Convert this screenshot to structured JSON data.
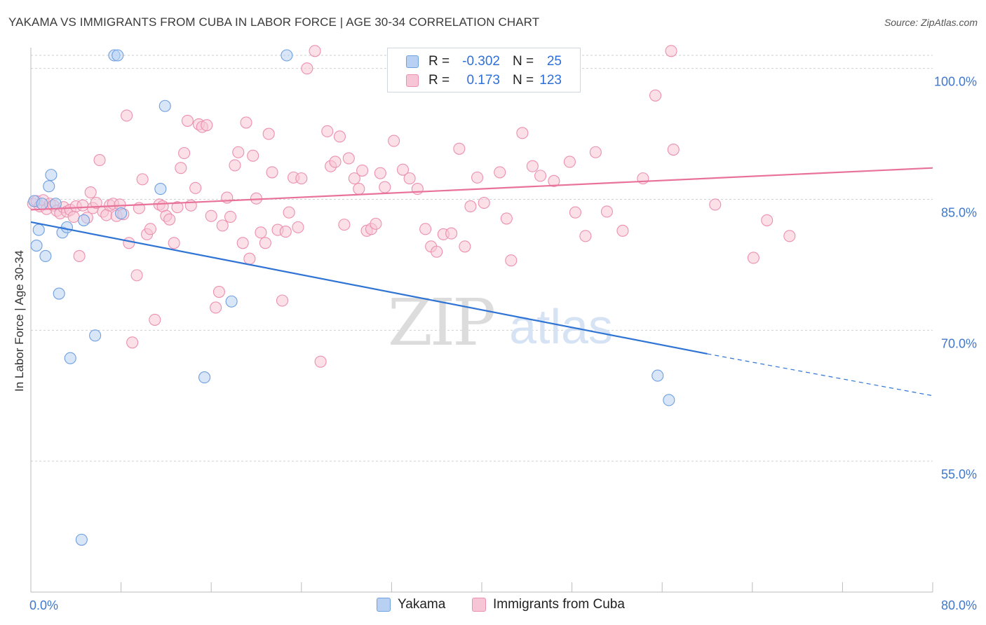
{
  "title": "YAKAMA VS IMMIGRANTS FROM CUBA IN LABOR FORCE | AGE 30-34 CORRELATION CHART",
  "source": "Source: ZipAtlas.com",
  "watermark": {
    "zip": "ZIP",
    "atlas": "atlas"
  },
  "legend": {
    "rows": [
      {
        "r_label": "R =",
        "r_value": "-0.302",
        "n_label": "N =",
        "n_value": "25"
      },
      {
        "r_label": "R =",
        "r_value": "0.173",
        "n_label": "N =",
        "n_value": "123"
      }
    ],
    "bottom": [
      "Yakama",
      "Immigrants from Cuba"
    ]
  },
  "colors": {
    "yakama_fill": "#b8d1f3",
    "yakama_stroke": "#6e9fe0",
    "yakama_line": "#2f74d4",
    "cuba_fill": "#f7c6d6",
    "cuba_stroke": "#ec8fb0",
    "cuba_line": "#e8729a",
    "tick_label": "#3f78cc",
    "grid": "#cfcfcf",
    "axis_text": "#444444"
  },
  "chart_data": {
    "type": "scatter",
    "title": "YAKAMA VS IMMIGRANTS FROM CUBA IN LABOR FORCE | AGE 30-34 CORRELATION CHART",
    "xlabel": "",
    "ylabel": "In Labor Force | Age 30-34",
    "xlim": [
      0,
      80
    ],
    "ylim": [
      40,
      101.5
    ],
    "x_tick_labels": [
      {
        "value": 0,
        "label": "0.0%"
      },
      {
        "value": 80,
        "label": "80.0%"
      }
    ],
    "y_tick_labels": [
      {
        "value": 100,
        "label": "100.0%"
      },
      {
        "value": 85,
        "label": "85.0%"
      },
      {
        "value": 70,
        "label": "70.0%"
      },
      {
        "value": 55,
        "label": "55.0%"
      }
    ],
    "series": [
      {
        "name": "Yakama",
        "r": -0.302,
        "n": 25,
        "trend": {
          "x0": 0,
          "y0": 82.4,
          "x1": 60,
          "y1": 67.3,
          "dash_to_x": 80,
          "dash_to_y": 62.5
        },
        "points": [
          [
            0.3,
            84.8
          ],
          [
            0.5,
            79.7
          ],
          [
            0.7,
            81.5
          ],
          [
            1.0,
            84.5
          ],
          [
            1.3,
            78.5
          ],
          [
            1.6,
            86.5
          ],
          [
            1.8,
            87.8
          ],
          [
            2.2,
            84.5
          ],
          [
            2.5,
            74.2
          ],
          [
            2.8,
            81.2
          ],
          [
            3.2,
            81.8
          ],
          [
            3.5,
            66.8
          ],
          [
            4.5,
            46.0
          ],
          [
            4.7,
            82.6
          ],
          [
            5.7,
            69.4
          ],
          [
            7.4,
            101.5
          ],
          [
            7.7,
            101.5
          ],
          [
            8.0,
            83.4
          ],
          [
            11.5,
            86.2
          ],
          [
            11.9,
            95.7
          ],
          [
            15.4,
            64.6
          ],
          [
            17.8,
            73.3
          ],
          [
            22.7,
            101.5
          ],
          [
            55.6,
            64.8
          ],
          [
            56.6,
            62.0
          ]
        ]
      },
      {
        "name": "Immigrants from Cuba",
        "r": 0.173,
        "n": 123,
        "trend": {
          "x0": 0,
          "y0": 83.8,
          "x1": 80,
          "y1": 88.6
        },
        "points": [
          [
            0.2,
            84.5
          ],
          [
            0.5,
            84.8
          ],
          [
            0.8,
            84.2
          ],
          [
            1.1,
            84.9
          ],
          [
            1.4,
            83.9
          ],
          [
            1.7,
            84.5
          ],
          [
            2.0,
            84.3
          ],
          [
            2.3,
            83.7
          ],
          [
            2.6,
            83.4
          ],
          [
            2.9,
            84.1
          ],
          [
            3.2,
            83.6
          ],
          [
            3.5,
            83.8
          ],
          [
            3.8,
            83.0
          ],
          [
            4.0,
            84.2
          ],
          [
            4.3,
            78.5
          ],
          [
            4.6,
            84.3
          ],
          [
            5.0,
            82.9
          ],
          [
            5.3,
            85.8
          ],
          [
            5.5,
            84.0
          ],
          [
            5.8,
            84.6
          ],
          [
            6.1,
            89.5
          ],
          [
            6.4,
            83.6
          ],
          [
            6.7,
            83.2
          ],
          [
            7.0,
            84.3
          ],
          [
            7.3,
            84.5
          ],
          [
            7.6,
            83.1
          ],
          [
            7.9,
            84.4
          ],
          [
            8.2,
            83.3
          ],
          [
            8.5,
            94.6
          ],
          [
            8.7,
            80.0
          ],
          [
            9.0,
            68.6
          ],
          [
            9.4,
            76.3
          ],
          [
            9.6,
            84.0
          ],
          [
            9.9,
            87.3
          ],
          [
            10.3,
            81.0
          ],
          [
            10.6,
            81.6
          ],
          [
            11.0,
            71.2
          ],
          [
            11.4,
            84.4
          ],
          [
            11.7,
            84.2
          ],
          [
            12.0,
            83.1
          ],
          [
            12.3,
            82.7
          ],
          [
            12.7,
            80.0
          ],
          [
            13.0,
            84.1
          ],
          [
            13.3,
            88.6
          ],
          [
            13.6,
            90.3
          ],
          [
            13.9,
            94.0
          ],
          [
            14.2,
            84.3
          ],
          [
            14.6,
            86.3
          ],
          [
            14.9,
            93.6
          ],
          [
            15.2,
            93.3
          ],
          [
            15.6,
            93.5
          ],
          [
            16.0,
            83.1
          ],
          [
            16.4,
            72.6
          ],
          [
            16.7,
            74.4
          ],
          [
            17.0,
            82.0
          ],
          [
            17.4,
            85.2
          ],
          [
            17.7,
            83.0
          ],
          [
            18.1,
            88.9
          ],
          [
            18.4,
            90.4
          ],
          [
            18.8,
            80.0
          ],
          [
            19.1,
            93.8
          ],
          [
            19.4,
            78.2
          ],
          [
            19.7,
            90.0
          ],
          [
            20.0,
            85.1
          ],
          [
            20.4,
            81.2
          ],
          [
            20.8,
            80.0
          ],
          [
            21.1,
            92.5
          ],
          [
            21.4,
            88.1
          ],
          [
            21.9,
            81.5
          ],
          [
            22.3,
            73.4
          ],
          [
            22.6,
            81.3
          ],
          [
            22.9,
            83.5
          ],
          [
            23.3,
            87.5
          ],
          [
            23.7,
            81.8
          ],
          [
            24.0,
            87.4
          ],
          [
            24.5,
            100.0
          ],
          [
            25.2,
            102.0
          ],
          [
            25.7,
            66.4
          ],
          [
            26.3,
            92.8
          ],
          [
            26.6,
            88.8
          ],
          [
            27.0,
            89.3
          ],
          [
            27.4,
            92.2
          ],
          [
            27.8,
            82.1
          ],
          [
            28.2,
            89.7
          ],
          [
            28.7,
            87.4
          ],
          [
            29.1,
            86.2
          ],
          [
            29.4,
            88.3
          ],
          [
            29.8,
            81.4
          ],
          [
            30.2,
            81.6
          ],
          [
            30.6,
            82.2
          ],
          [
            31.0,
            88.0
          ],
          [
            31.4,
            86.4
          ],
          [
            32.2,
            91.7
          ],
          [
            33.0,
            88.4
          ],
          [
            33.6,
            87.4
          ],
          [
            34.3,
            86.2
          ],
          [
            35.0,
            81.6
          ],
          [
            35.5,
            79.6
          ],
          [
            36.0,
            79.0
          ],
          [
            36.6,
            81.0
          ],
          [
            37.3,
            81.1
          ],
          [
            38.0,
            90.8
          ],
          [
            38.5,
            79.6
          ],
          [
            39.0,
            84.2
          ],
          [
            39.6,
            87.5
          ],
          [
            40.2,
            84.6
          ],
          [
            41.6,
            88.1
          ],
          [
            42.2,
            82.8
          ],
          [
            42.6,
            78.0
          ],
          [
            43.6,
            92.6
          ],
          [
            44.5,
            88.8
          ],
          [
            45.2,
            87.7
          ],
          [
            46.4,
            87.1
          ],
          [
            47.8,
            89.3
          ],
          [
            48.3,
            83.5
          ],
          [
            49.2,
            80.8
          ],
          [
            50.1,
            90.4
          ],
          [
            51.1,
            83.6
          ],
          [
            52.5,
            81.4
          ],
          [
            54.3,
            87.4
          ],
          [
            55.4,
            96.9
          ],
          [
            56.8,
            102.0
          ],
          [
            57.0,
            90.7
          ],
          [
            60.7,
            84.4
          ],
          [
            64.1,
            78.3
          ],
          [
            65.3,
            82.6
          ],
          [
            67.3,
            80.8
          ]
        ]
      }
    ]
  }
}
